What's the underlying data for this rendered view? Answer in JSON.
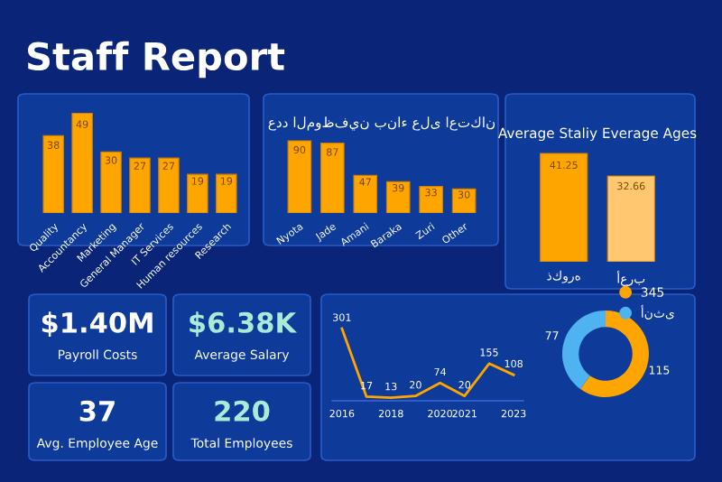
{
  "chart_data": [
    {
      "type": "other",
      "title": "Staff Report"
    },
    {
      "type": "bar",
      "categories": [
        "Quality",
        "Accountancy",
        "Marketing",
        "General Manager",
        "IT Services",
        "Human resources",
        "Research"
      ],
      "values": [
        38,
        49,
        30,
        27,
        27,
        19,
        19
      ],
      "color": "#ffa500",
      "data_labels": true,
      "tick_labels": "x"
    },
    {
      "type": "bar",
      "title": "عدد الموظفين بناء على اعتكان",
      "categories": [
        "Nyota",
        "Jade",
        "Amani",
        "Baraka",
        "Zuri",
        "Other"
      ],
      "values": [
        90,
        87,
        47,
        39,
        33,
        30
      ],
      "color": "#ffa500",
      "data_labels": true,
      "tick_labels": "x"
    },
    {
      "type": "bar",
      "title": "Average Staliy Everage Ages",
      "categories": [
        "ذكوره",
        "أعرب"
      ],
      "values": [
        41.25,
        32.66
      ],
      "colors": [
        "#ffa500",
        "#ffc870"
      ],
      "data_labels": true,
      "tick_labels": "x"
    },
    {
      "type": "other",
      "annotations": [
        "$1.40M",
        "Payroll Costs",
        "$6.38K",
        "Average Salary",
        "37",
        "Avg. Employee Age",
        "220",
        "Total Employees"
      ]
    },
    {
      "type": "line",
      "x": [
        2016,
        2017,
        2018,
        2019,
        2020,
        2021,
        2022,
        2023
      ],
      "values": [
        301,
        17,
        13,
        20,
        74,
        20,
        155,
        108
      ],
      "color": "#ffa500",
      "xlim": [
        2015.6,
        2023.4
      ],
      "xticks": [
        2016,
        2018,
        2020,
        2021,
        2023
      ],
      "data_labels": true,
      "tick_labels": "x"
    },
    {
      "type": "donut",
      "categories": [
        "345",
        "أنثى"
      ],
      "values": [
        115,
        77
      ],
      "colors": [
        "#ffa500",
        "#4fb3f2"
      ],
      "data_labels": true,
      "legend": "top right"
    }
  ]
}
